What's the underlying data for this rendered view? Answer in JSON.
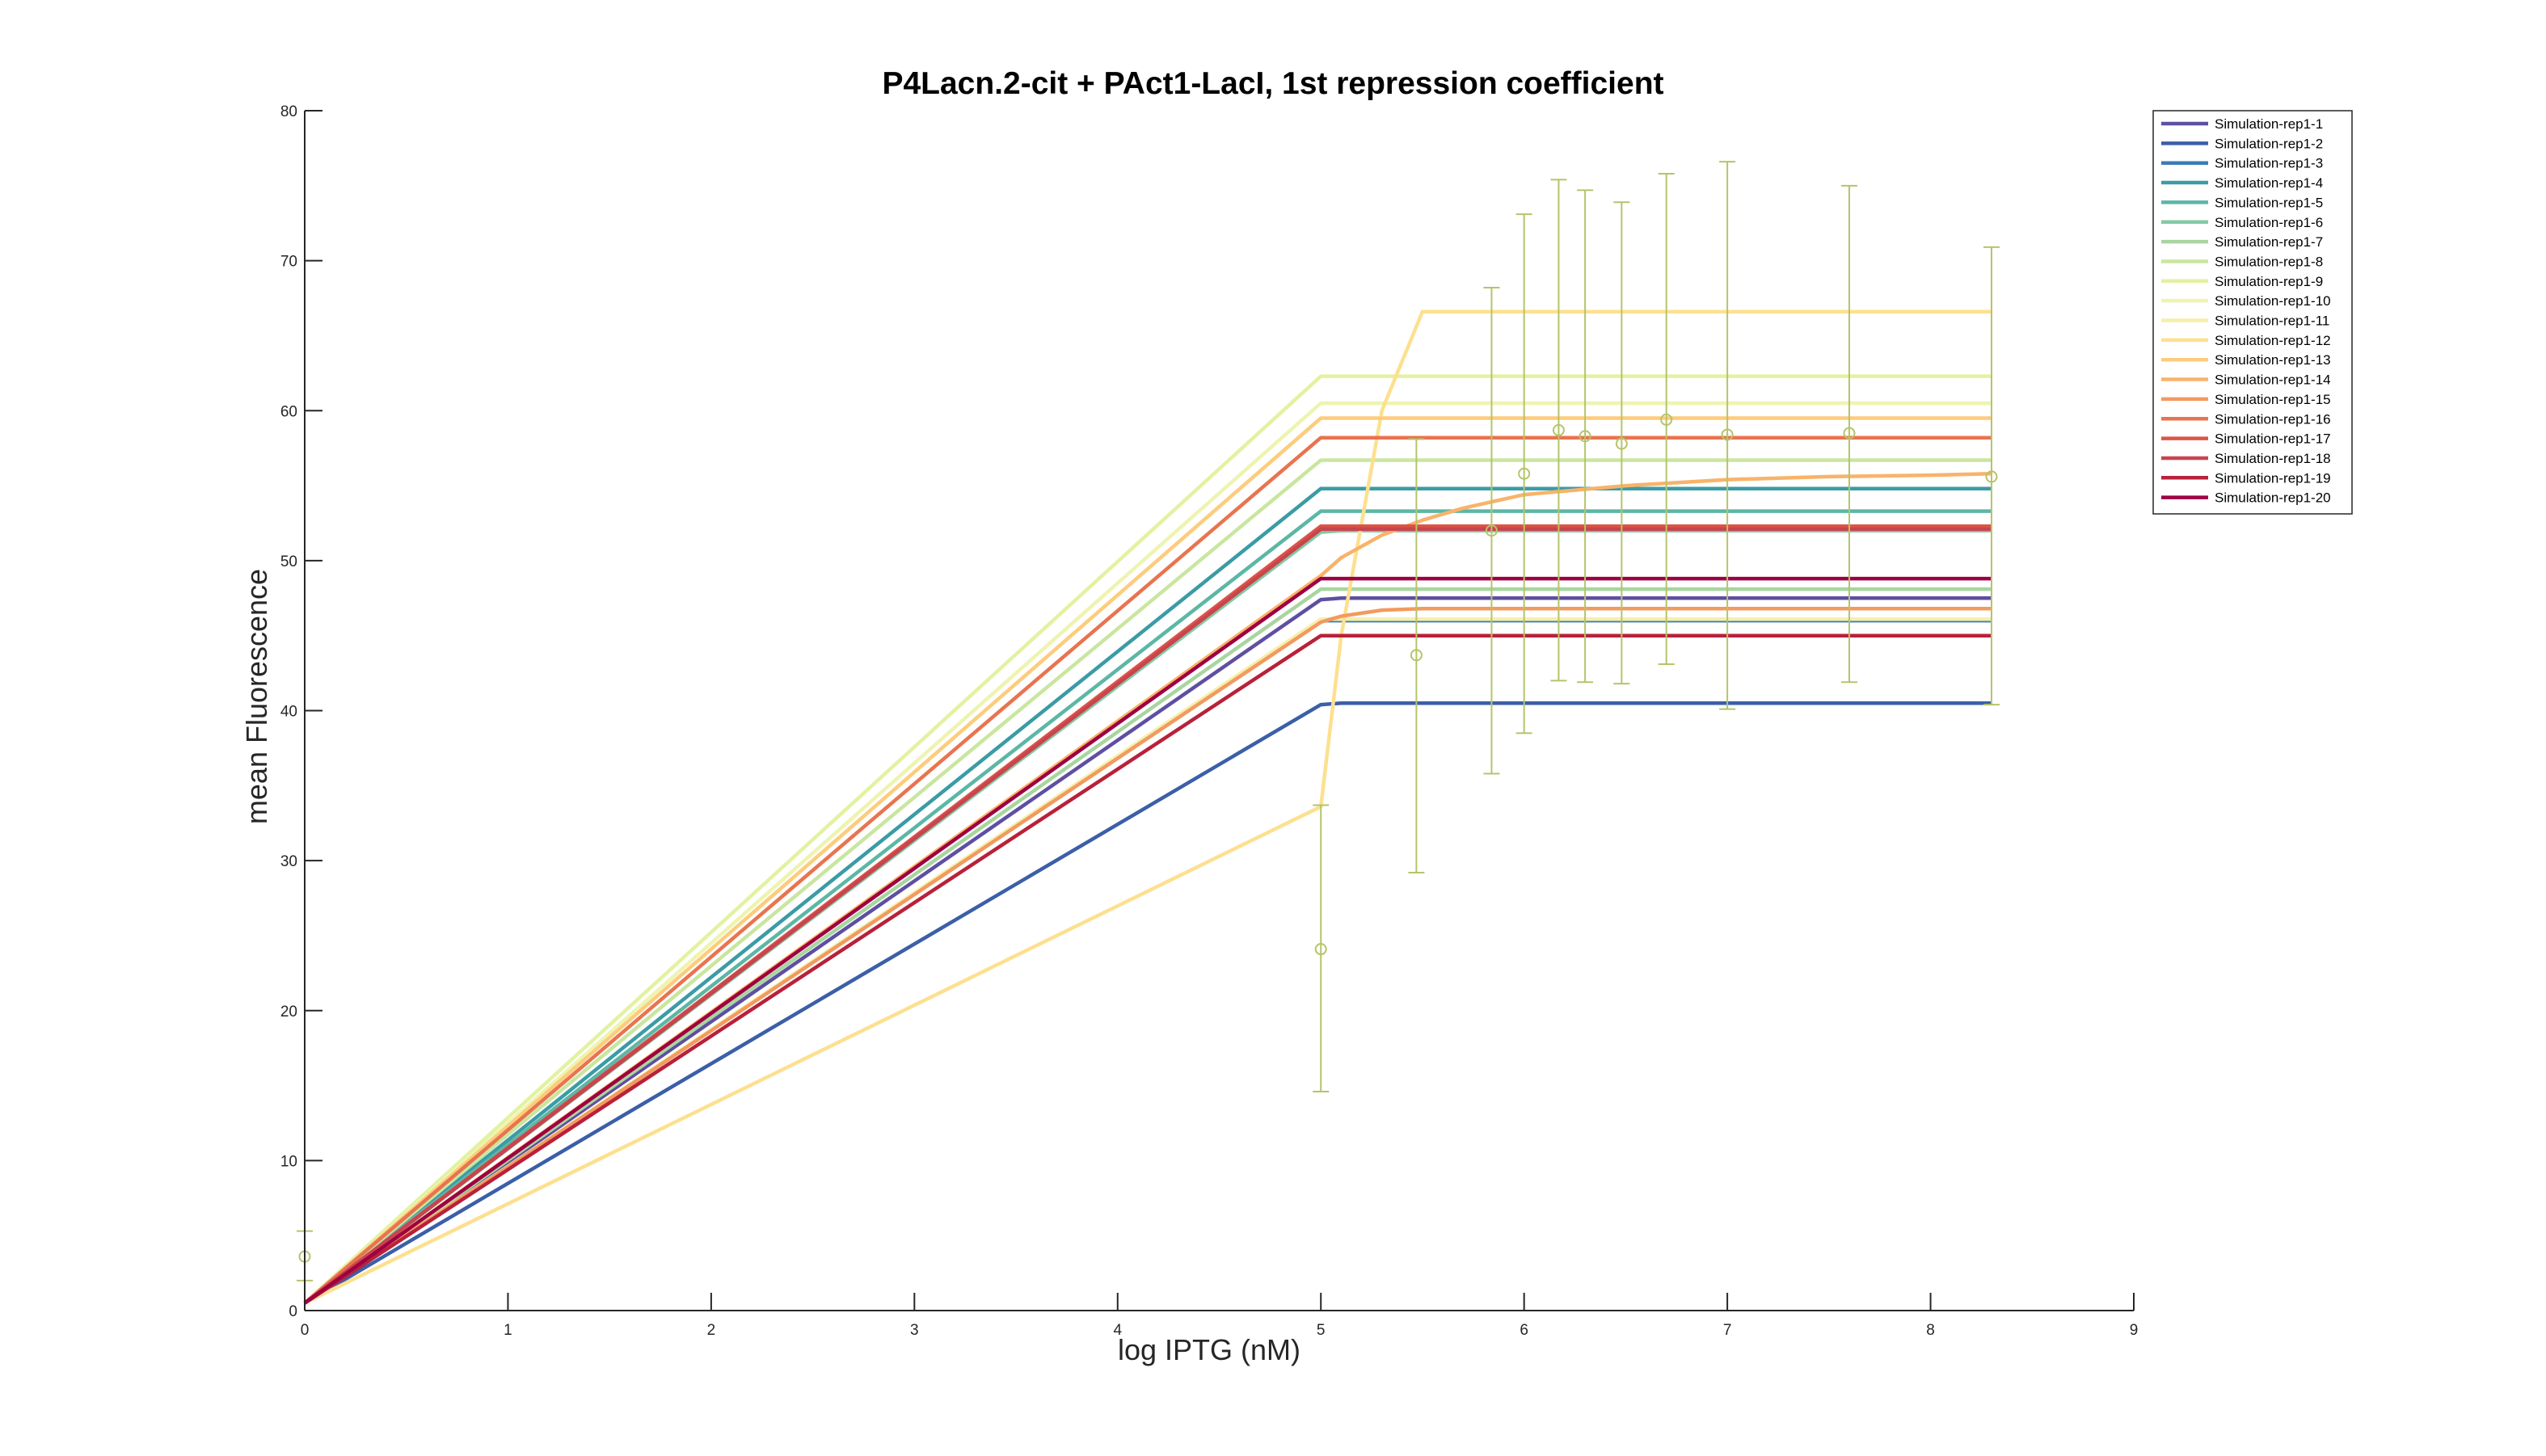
{
  "chart_data": {
    "type": "line",
    "title": "P4Lacn.2-cit + PAct1-LacI, 1st repression coefficient",
    "xlabel": "log IPTG (nM)",
    "ylabel": "mean Fluorescence",
    "xlim": [
      0,
      9
    ],
    "ylim": [
      0,
      80
    ],
    "xticks": [
      0,
      1,
      2,
      3,
      4,
      5,
      6,
      7,
      8,
      9
    ],
    "yticks": [
      0,
      10,
      20,
      30,
      40,
      50,
      60,
      70,
      80
    ],
    "grid": false,
    "legend_position": "top-right",
    "x": [
      0,
      5,
      5.1,
      5.3,
      5.5,
      5.7,
      6,
      6.5,
      7,
      7.5,
      8,
      8.3
    ],
    "series": [
      {
        "name": "Simulation-rep1-1",
        "color": "#5e4fa2",
        "values": [
          0.5,
          47.4,
          47.5,
          47.5,
          47.5,
          47.5,
          47.5,
          47.5,
          47.5,
          47.5,
          47.5,
          47.5
        ]
      },
      {
        "name": "Simulation-rep1-2",
        "color": "#3b5fa8",
        "values": [
          0.5,
          40.4,
          40.5,
          40.5,
          40.5,
          40.5,
          40.5,
          40.5,
          40.5,
          40.5,
          40.5,
          40.5
        ]
      },
      {
        "name": "Simulation-rep1-3",
        "color": "#3a7db5",
        "values": [
          0.5,
          46.0,
          46.0,
          46.0,
          46.0,
          46.0,
          46.0,
          46.0,
          46.0,
          46.0,
          46.0,
          46.0
        ]
      },
      {
        "name": "Simulation-rep1-4",
        "color": "#3b9ba6",
        "values": [
          0.5,
          54.8,
          54.8,
          54.8,
          54.8,
          54.8,
          54.8,
          54.8,
          54.8,
          54.8,
          54.8,
          54.8
        ]
      },
      {
        "name": "Simulation-rep1-5",
        "color": "#5cb7a5",
        "values": [
          0.5,
          53.3,
          53.3,
          53.3,
          53.3,
          53.3,
          53.3,
          53.3,
          53.3,
          53.3,
          53.3,
          53.3
        ]
      },
      {
        "name": "Simulation-rep1-6",
        "color": "#83caa4",
        "values": [
          0.5,
          51.9,
          52.0,
          52.0,
          52.0,
          52.0,
          52.0,
          52.0,
          52.0,
          52.0,
          52.0,
          52.0
        ]
      },
      {
        "name": "Simulation-rep1-7",
        "color": "#a9d5a0",
        "values": [
          0.5,
          48.1,
          48.1,
          48.1,
          48.1,
          48.1,
          48.1,
          48.1,
          48.1,
          48.1,
          48.1,
          48.1
        ]
      },
      {
        "name": "Simulation-rep1-8",
        "color": "#c9e69f",
        "values": [
          0.5,
          56.7,
          56.7,
          56.7,
          56.7,
          56.7,
          56.7,
          56.7,
          56.7,
          56.7,
          56.7,
          56.7
        ]
      },
      {
        "name": "Simulation-rep1-9",
        "color": "#e2f2a0",
        "values": [
          0.5,
          62.3,
          62.3,
          62.3,
          62.3,
          62.3,
          62.3,
          62.3,
          62.3,
          62.3,
          62.3,
          62.3
        ]
      },
      {
        "name": "Simulation-rep1-10",
        "color": "#eef4b0",
        "values": [
          0.5,
          60.5,
          60.5,
          60.5,
          60.5,
          60.5,
          60.5,
          60.5,
          60.5,
          60.5,
          60.5,
          60.5
        ]
      },
      {
        "name": "Simulation-rep1-11",
        "color": "#f6efaa",
        "values": [
          0.5,
          46.1,
          46.1,
          46.1,
          46.1,
          46.1,
          46.1,
          46.1,
          46.1,
          46.1,
          46.1,
          46.1
        ]
      },
      {
        "name": "Simulation-rep1-12",
        "color": "#fde08f",
        "values": [
          0.5,
          33.6,
          45.0,
          60.0,
          66.6,
          66.6,
          66.6,
          66.6,
          66.6,
          66.6,
          66.6,
          66.6
        ]
      },
      {
        "name": "Simulation-rep1-13",
        "color": "#fdcc7c",
        "values": [
          0.5,
          59.5,
          59.5,
          59.5,
          59.5,
          59.5,
          59.5,
          59.5,
          59.5,
          59.5,
          59.5,
          59.5
        ]
      },
      {
        "name": "Simulation-rep1-14",
        "color": "#f8b36a",
        "values": [
          0.5,
          49.0,
          50.2,
          51.7,
          52.7,
          53.5,
          54.4,
          55.0,
          55.4,
          55.6,
          55.7,
          55.8
        ]
      },
      {
        "name": "Simulation-rep1-15",
        "color": "#f29a60",
        "values": [
          0.5,
          45.9,
          46.3,
          46.7,
          46.8,
          46.8,
          46.8,
          46.8,
          46.8,
          46.8,
          46.8,
          46.8
        ]
      },
      {
        "name": "Simulation-rep1-16",
        "color": "#e8744f",
        "values": [
          0.5,
          58.2,
          58.2,
          58.2,
          58.2,
          58.2,
          58.2,
          58.2,
          58.2,
          58.2,
          58.2,
          58.2
        ]
      },
      {
        "name": "Simulation-rep1-17",
        "color": "#dc5447",
        "values": [
          0.5,
          52.3,
          52.3,
          52.3,
          52.3,
          52.3,
          52.3,
          52.3,
          52.3,
          52.3,
          52.3,
          52.3
        ]
      },
      {
        "name": "Simulation-rep1-18",
        "color": "#c9444e",
        "values": [
          0.5,
          52.1,
          52.1,
          52.1,
          52.1,
          52.1,
          52.1,
          52.1,
          52.1,
          52.1,
          52.1,
          52.1
        ]
      },
      {
        "name": "Simulation-rep1-19",
        "color": "#b8213a",
        "values": [
          0.5,
          45.0,
          45.0,
          45.0,
          45.0,
          45.0,
          45.0,
          45.0,
          45.0,
          45.0,
          45.0,
          45.0
        ]
      },
      {
        "name": "Simulation-rep1-20",
        "color": "#9e0142",
        "values": [
          0.5,
          48.8,
          48.8,
          48.8,
          48.8,
          48.8,
          48.8,
          48.8,
          48.8,
          48.8,
          48.8,
          48.8
        ]
      }
    ],
    "measurements": {
      "color": "#b5c46a",
      "points": [
        {
          "x": 0,
          "y": 3.6,
          "low": 2.0,
          "high": 5.3
        },
        {
          "x": 5,
          "y": 24.1,
          "low": 14.6,
          "high": 33.7
        },
        {
          "x": 5.47,
          "y": 43.7,
          "low": 29.2,
          "high": 58.1
        },
        {
          "x": 5.84,
          "y": 52.0,
          "low": 35.8,
          "high": 68.2
        },
        {
          "x": 6,
          "y": 55.8,
          "low": 38.5,
          "high": 73.1
        },
        {
          "x": 6.17,
          "y": 58.7,
          "low": 42.0,
          "high": 75.4
        },
        {
          "x": 6.3,
          "y": 58.3,
          "low": 41.9,
          "high": 74.7
        },
        {
          "x": 6.48,
          "y": 57.8,
          "low": 41.8,
          "high": 73.9
        },
        {
          "x": 6.7,
          "y": 59.4,
          "low": 43.1,
          "high": 75.8
        },
        {
          "x": 7,
          "y": 58.4,
          "low": 40.1,
          "high": 76.6
        },
        {
          "x": 7.6,
          "y": 58.5,
          "low": 41.9,
          "high": 75.0
        },
        {
          "x": 8.3,
          "y": 55.6,
          "low": 40.4,
          "high": 70.9
        }
      ]
    }
  }
}
